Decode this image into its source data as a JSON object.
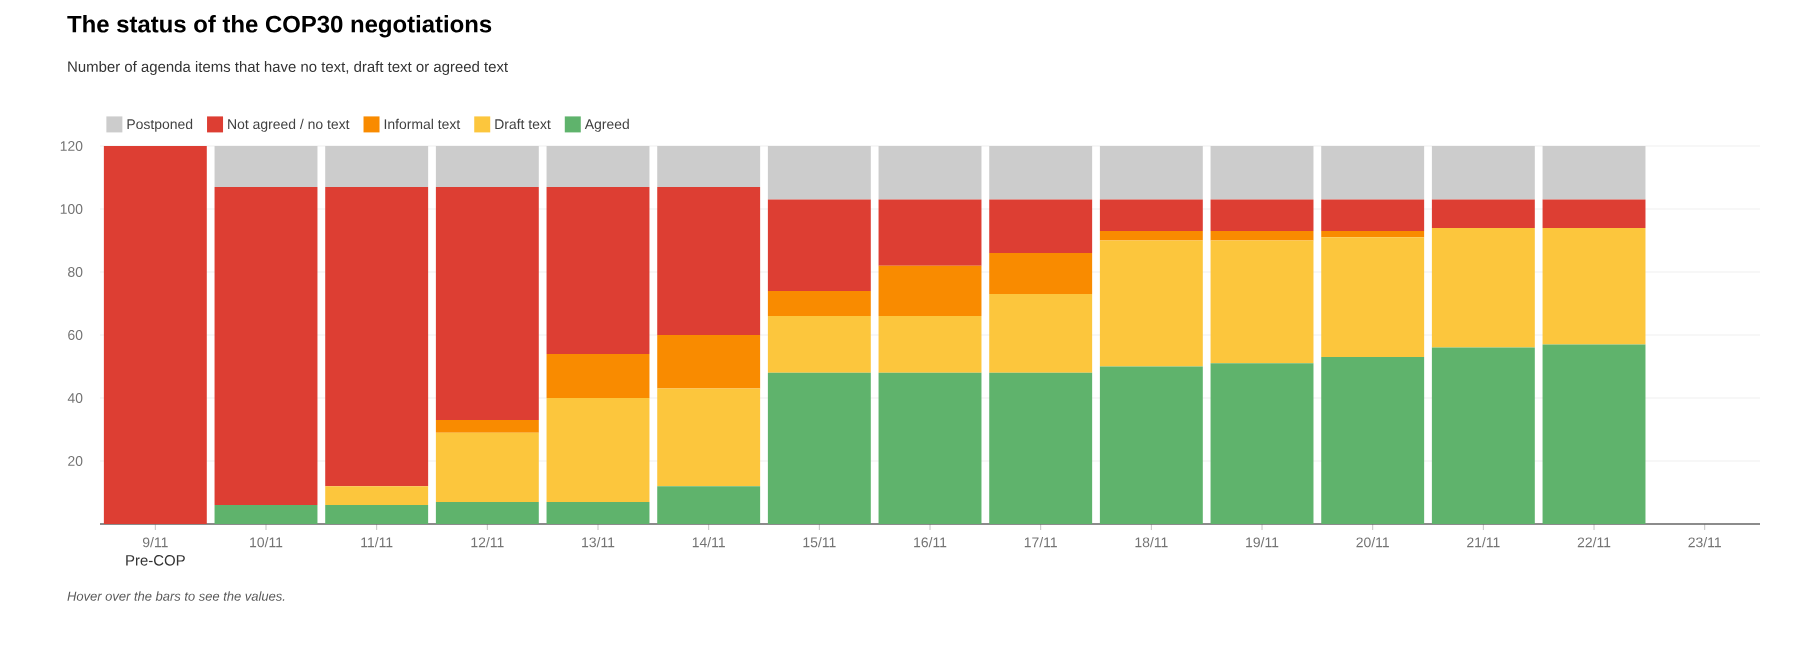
{
  "chart_data": {
    "type": "bar",
    "stacked": true,
    "title": "The status of the COP30 negotiations",
    "subtitle": "Number of agenda items that have no text, draft text or agreed text",
    "categories": [
      "9/11",
      "10/11",
      "11/11",
      "12/11",
      "13/11",
      "14/11",
      "15/11",
      "16/11",
      "17/11",
      "18/11",
      "19/11",
      "20/11",
      "21/11",
      "22/11",
      "23/11"
    ],
    "series": [
      {
        "name": "Agreed",
        "color": "#5fb36c",
        "values": [
          0,
          6,
          6,
          7,
          7,
          12,
          48,
          48,
          48,
          50,
          51,
          53,
          56,
          57,
          null
        ]
      },
      {
        "name": "Draft text",
        "color": "#fcc63d",
        "values": [
          0,
          0,
          6,
          22,
          33,
          31,
          18,
          18,
          25,
          40,
          39,
          38,
          38,
          37,
          null
        ]
      },
      {
        "name": "Informal text",
        "color": "#f98b00",
        "values": [
          0,
          0,
          0,
          4,
          14,
          17,
          8,
          16,
          13,
          3,
          3,
          2,
          0,
          0,
          null
        ]
      },
      {
        "name": "Not agreed / no text",
        "color": "#dd3e33",
        "values": [
          120,
          101,
          95,
          74,
          53,
          47,
          29,
          21,
          17,
          10,
          10,
          10,
          9,
          9,
          null
        ]
      },
      {
        "name": "Postponed",
        "color": "#cccccc",
        "values": [
          0,
          13,
          13,
          13,
          13,
          13,
          17,
          17,
          17,
          17,
          17,
          17,
          17,
          17,
          null
        ]
      }
    ],
    "ylim": [
      0,
      120
    ],
    "yticks": [
      20,
      40,
      60,
      80,
      100,
      120
    ],
    "grid": "y",
    "legend": "top left",
    "annotations": [
      "Pre-COP",
      "Hover over the bars to see the values."
    ]
  }
}
